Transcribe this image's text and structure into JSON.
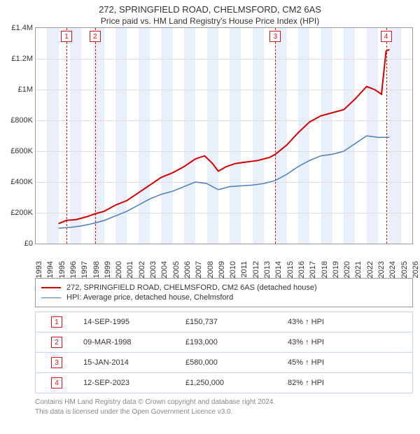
{
  "title": {
    "main": "272, SPRINGFIELD ROAD, CHELMSFORD, CM2 6AS",
    "sub": "Price paid vs. HM Land Registry's House Price Index (HPI)"
  },
  "chart": {
    "type": "line",
    "plot_bg": "#ffffff",
    "band_color": "#eaf0fa",
    "grid_color": "#dddddd",
    "border_color": "#999999",
    "x_years": [
      1993,
      1994,
      1995,
      1996,
      1997,
      1998,
      1999,
      2000,
      2001,
      2002,
      2003,
      2004,
      2005,
      2006,
      2007,
      2008,
      2009,
      2010,
      2011,
      2012,
      2013,
      2014,
      2015,
      2016,
      2017,
      2018,
      2019,
      2020,
      2021,
      2022,
      2023,
      2024,
      2025,
      2026
    ],
    "x_min": 1993,
    "x_max": 2026,
    "y_min": 0,
    "y_max": 1400000,
    "y_ticks": [
      {
        "v": 0,
        "label": "£0"
      },
      {
        "v": 200000,
        "label": "£200K"
      },
      {
        "v": 400000,
        "label": "£400K"
      },
      {
        "v": 600000,
        "label": "£600K"
      },
      {
        "v": 800000,
        "label": "£800K"
      },
      {
        "v": 1000000,
        "label": "£1M"
      },
      {
        "v": 1200000,
        "label": "£1.2M"
      },
      {
        "v": 1400000,
        "label": "£1.4M"
      }
    ],
    "series": [
      {
        "name": "272, SPRINGFIELD ROAD, CHELMSFORD, CM2 6AS (detached house)",
        "color": "#d40000",
        "width": 2,
        "points": [
          [
            1995.0,
            130000
          ],
          [
            1995.7,
            150737
          ],
          [
            1996.5,
            155000
          ],
          [
            1997.5,
            175000
          ],
          [
            1998.2,
            193000
          ],
          [
            1999.0,
            210000
          ],
          [
            2000.0,
            250000
          ],
          [
            2001.0,
            280000
          ],
          [
            2002.0,
            330000
          ],
          [
            2003.0,
            380000
          ],
          [
            2004.0,
            430000
          ],
          [
            2005.0,
            460000
          ],
          [
            2006.0,
            500000
          ],
          [
            2007.0,
            550000
          ],
          [
            2007.8,
            570000
          ],
          [
            2008.5,
            520000
          ],
          [
            2009.0,
            470000
          ],
          [
            2009.7,
            500000
          ],
          [
            2010.5,
            520000
          ],
          [
            2011.5,
            530000
          ],
          [
            2012.5,
            540000
          ],
          [
            2013.5,
            560000
          ],
          [
            2014.0,
            580000
          ],
          [
            2015.0,
            640000
          ],
          [
            2016.0,
            720000
          ],
          [
            2017.0,
            790000
          ],
          [
            2018.0,
            830000
          ],
          [
            2019.0,
            850000
          ],
          [
            2020.0,
            870000
          ],
          [
            2021.0,
            940000
          ],
          [
            2022.0,
            1020000
          ],
          [
            2022.7,
            1000000
          ],
          [
            2023.3,
            970000
          ],
          [
            2023.7,
            1250000
          ],
          [
            2024.0,
            1260000
          ]
        ]
      },
      {
        "name": "HPI: Average price, detached house, Chelmsford",
        "color": "#4a7fbf",
        "width": 1.5,
        "points": [
          [
            1995.0,
            100000
          ],
          [
            1996.0,
            105000
          ],
          [
            1997.0,
            115000
          ],
          [
            1998.0,
            130000
          ],
          [
            1999.0,
            150000
          ],
          [
            2000.0,
            180000
          ],
          [
            2001.0,
            210000
          ],
          [
            2002.0,
            250000
          ],
          [
            2003.0,
            290000
          ],
          [
            2004.0,
            320000
          ],
          [
            2005.0,
            340000
          ],
          [
            2006.0,
            370000
          ],
          [
            2007.0,
            400000
          ],
          [
            2008.0,
            390000
          ],
          [
            2009.0,
            350000
          ],
          [
            2010.0,
            370000
          ],
          [
            2011.0,
            375000
          ],
          [
            2012.0,
            380000
          ],
          [
            2013.0,
            390000
          ],
          [
            2014.0,
            410000
          ],
          [
            2015.0,
            450000
          ],
          [
            2016.0,
            500000
          ],
          [
            2017.0,
            540000
          ],
          [
            2018.0,
            570000
          ],
          [
            2019.0,
            580000
          ],
          [
            2020.0,
            600000
          ],
          [
            2021.0,
            650000
          ],
          [
            2022.0,
            700000
          ],
          [
            2023.0,
            690000
          ],
          [
            2024.0,
            690000
          ]
        ]
      }
    ],
    "markers": [
      {
        "n": "1",
        "x": 1995.7
      },
      {
        "n": "2",
        "x": 1998.2
      },
      {
        "n": "3",
        "x": 2014.0
      },
      {
        "n": "4",
        "x": 2023.7
      }
    ]
  },
  "legend": [
    {
      "color": "#d40000",
      "width": 2,
      "text": "272, SPRINGFIELD ROAD, CHELMSFORD, CM2 6AS (detached house)"
    },
    {
      "color": "#4a7fbf",
      "width": 1.5,
      "text": "HPI: Average price, detached house, Chelmsford"
    }
  ],
  "table": [
    {
      "n": "1",
      "date": "14-SEP-1995",
      "price": "£150,737",
      "pct": "43% ↑ HPI"
    },
    {
      "n": "2",
      "date": "09-MAR-1998",
      "price": "£193,000",
      "pct": "43% ↑ HPI"
    },
    {
      "n": "3",
      "date": "15-JAN-2014",
      "price": "£580,000",
      "pct": "45% ↑ HPI"
    },
    {
      "n": "4",
      "date": "12-SEP-2023",
      "price": "£1,250,000",
      "pct": "82% ↑ HPI"
    }
  ],
  "footer": {
    "line1": "Contains HM Land Registry data © Crown copyright and database right 2024.",
    "line2": "This data is licensed under the Open Government Licence v3.0."
  }
}
